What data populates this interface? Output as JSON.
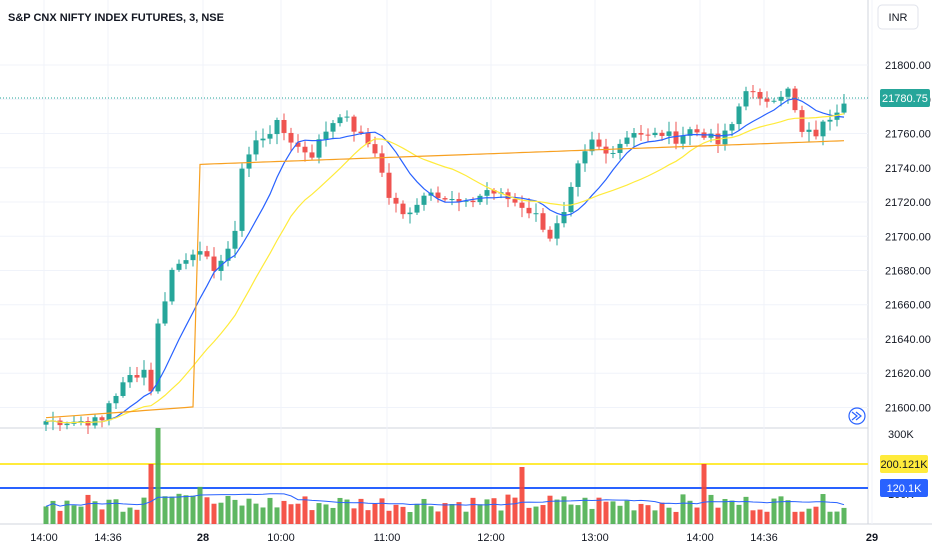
{
  "chart_data": {
    "type": "candlestick",
    "title": "S&P CNX NIFTY INDEX FUTURES, 3, NSE",
    "currency": "INR",
    "last_price_label": "21780.75",
    "price_axis": {
      "ticks": [
        "21800.00",
        "21780.00",
        "21760.00",
        "21740.00",
        "21720.00",
        "21700.00",
        "21680.00",
        "21660.00",
        "21640.00",
        "21620.00",
        "21600.00"
      ],
      "range": [
        21588,
        21838
      ]
    },
    "volume_axis": {
      "ticks": [
        "300K",
        "100K"
      ],
      "range": [
        0,
        320000
      ]
    },
    "time_labels": [
      "14:00",
      "14:36",
      "28",
      "10:00",
      "11:00",
      "12:00",
      "13:00",
      "14:00",
      "14:36",
      "29"
    ],
    "volume_lines": [
      {
        "label": "200.121K",
        "value": 200121,
        "color": "#ffeb3b"
      },
      {
        "label": "120.1K",
        "value": 120100,
        "color": "#2962ff"
      }
    ],
    "colors": {
      "up": "#26a69a",
      "down": "#ef5350",
      "up_vol": "#4caf50",
      "down_vol": "#f44336",
      "ma_fast": "#2962ff",
      "ma_mid": "#ffeb3b",
      "ma_slow": "#f7a021",
      "last_line": "#26a69a"
    }
  }
}
